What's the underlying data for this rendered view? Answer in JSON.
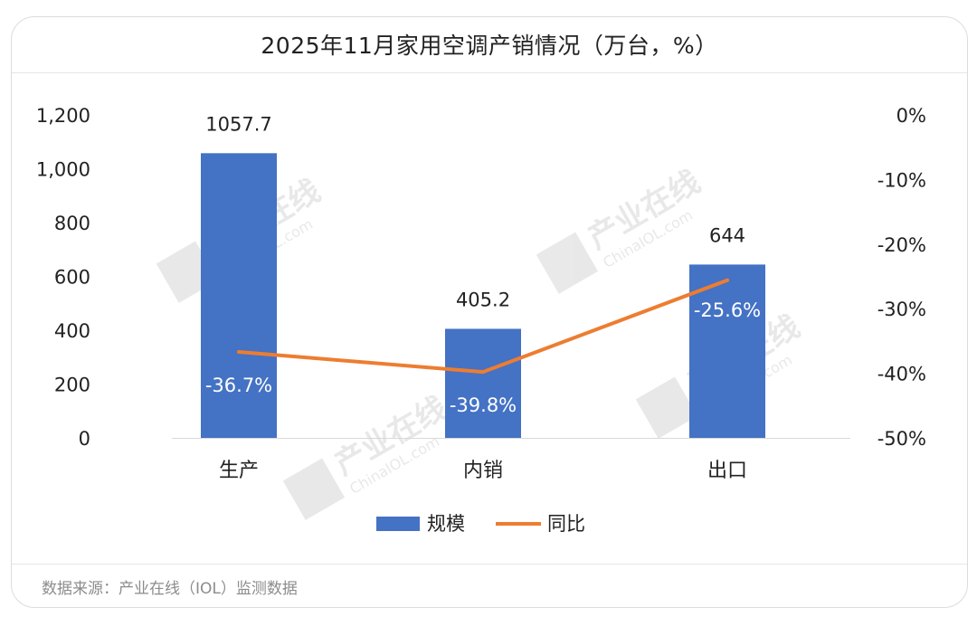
{
  "title": "2025年11月家用空调产销情况（万台，%）",
  "source": "数据来源：产业在线（IOL）监测数据",
  "watermark": {
    "text": "产业在线",
    "sub": "ChinaIOL.com"
  },
  "chart_data": {
    "type": "bar",
    "categories": [
      "生产",
      "内销",
      "出口"
    ],
    "series": [
      {
        "name": "规模",
        "type": "bar",
        "axis": "left",
        "values": [
          1057.7,
          405.2,
          644
        ],
        "labels": [
          "1057.7",
          "405.2",
          "644"
        ],
        "color": "#4472C4"
      },
      {
        "name": "同比",
        "type": "line",
        "axis": "right",
        "values": [
          -36.7,
          -39.8,
          -25.6
        ],
        "labels": [
          "-36.7%",
          "-39.8%",
          "-25.6%"
        ],
        "color": "#ED7D31"
      }
    ],
    "y_left": {
      "min": 0,
      "max": 1200,
      "ticks": [
        "0",
        "200",
        "400",
        "600",
        "800",
        "1,000",
        "1,200"
      ]
    },
    "y_right": {
      "min": -50,
      "max": 0,
      "ticks": [
        "-50%",
        "-40%",
        "-30%",
        "-20%",
        "-10%",
        "0%"
      ]
    },
    "grid": false,
    "legend": "bottom"
  }
}
